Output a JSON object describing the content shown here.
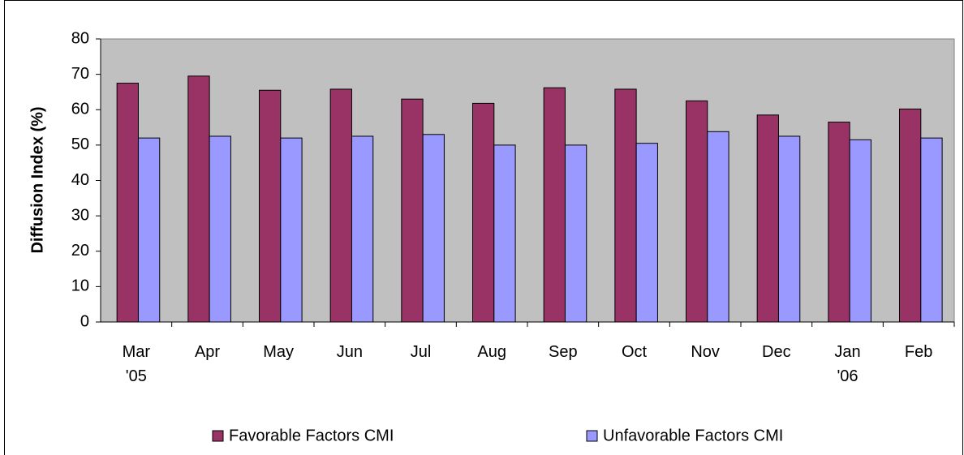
{
  "chart_data": {
    "type": "bar",
    "y_label": "Diffusion Index (%)",
    "categories": [
      "Mar '05",
      "Apr",
      "May",
      "Jun",
      "Jul",
      "Aug",
      "Sep",
      "Oct",
      "Nov",
      "Dec",
      "Jan '06",
      "Feb"
    ],
    "series": [
      {
        "name": "Favorable Factors CMI",
        "color": "#993366",
        "values": [
          67.5,
          69.5,
          65.5,
          65.8,
          63,
          61.8,
          66.2,
          65.8,
          62.5,
          58.5,
          56.5,
          60.2
        ]
      },
      {
        "name": "Unfavorable Factors CMI",
        "color": "#9999ff",
        "values": [
          52,
          52.5,
          52,
          52.5,
          53,
          50,
          50,
          50.5,
          53.8,
          52.5,
          51.5,
          52
        ]
      }
    ],
    "ylim": [
      0,
      80
    ],
    "yticks": [
      0,
      10,
      20,
      30,
      40,
      50,
      60,
      70,
      80
    ],
    "plot_background": "#c0c0c0"
  }
}
